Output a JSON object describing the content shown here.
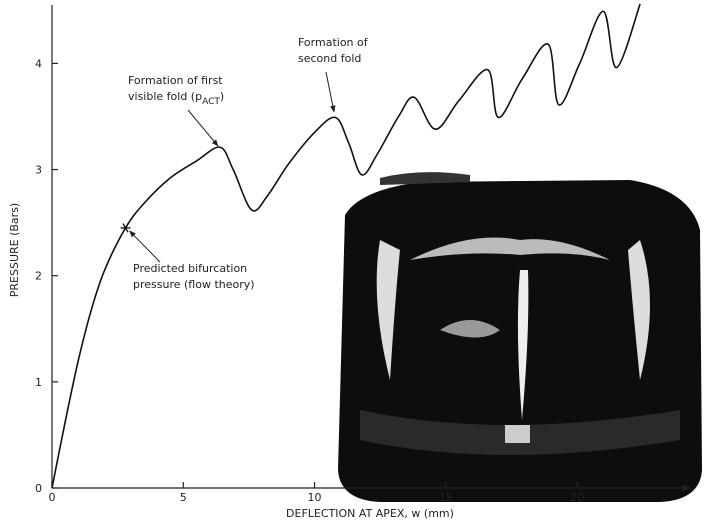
{
  "chart_data": {
    "type": "line",
    "x_label": "DEFLECTION AT APEX,  w (mm)",
    "y_label": "PRESSURE (Bars)",
    "xlim": [
      0,
      24.3
    ],
    "ylim": [
      0,
      4.55
    ],
    "xticks": [
      0,
      5,
      10,
      15,
      20
    ],
    "yticks": [
      0,
      1,
      2,
      3,
      4
    ],
    "color": "#111111",
    "x": [
      0,
      0.5,
      1,
      1.5,
      2,
      2.8,
      3.5,
      4.5,
      5.5,
      6.4,
      6.9,
      7.6,
      8.2,
      9,
      10,
      10.8,
      11.3,
      11.8,
      12.4,
      13.2,
      13.8,
      14.6,
      15.5,
      16.6,
      17.0,
      17.9,
      18.9,
      19.3,
      20.1,
      21.0,
      21.5,
      22.4
    ],
    "y": [
      0,
      0.62,
      1.2,
      1.68,
      2.05,
      2.45,
      2.68,
      2.92,
      3.08,
      3.21,
      3.0,
      2.62,
      2.75,
      3.05,
      3.35,
      3.49,
      3.25,
      2.95,
      3.15,
      3.5,
      3.68,
      3.38,
      3.65,
      3.94,
      3.49,
      3.85,
      4.18,
      3.61,
      4.0,
      4.49,
      3.96,
      4.56
    ],
    "marker": {
      "x": 2.8,
      "y": 2.45
    },
    "annotations": [
      {
        "lines": [
          "Predicted bifurcation",
          "pressure (flow theory)"
        ]
      },
      {
        "lines": [
          "Formation of first",
          "visible fold (p"
        ],
        "subscript": "ACT",
        "suffix": ")"
      },
      {
        "lines": [
          "Formation of",
          "second fold"
        ]
      }
    ]
  }
}
